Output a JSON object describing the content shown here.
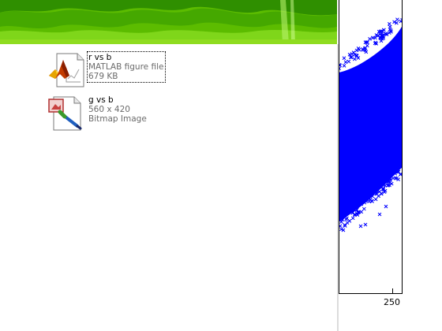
{
  "files": [
    {
      "name": "r vs b",
      "type": "MATLAB figure file",
      "detail": "679 KB",
      "icon": "matlab-figure-icon",
      "selected": true
    },
    {
      "name": "g vs b",
      "type": "Bitmap Image",
      "detail": "560 x 420",
      "icon": "bitmap-image-icon",
      "selected": false
    }
  ],
  "figure": {
    "marker_color": "#0000ff",
    "x_tick_label": "250"
  },
  "colors": {
    "wallpaper_green": "#57b800",
    "wallpaper_dark": "#2e8a00",
    "wallpaper_light": "#8fdc20"
  }
}
